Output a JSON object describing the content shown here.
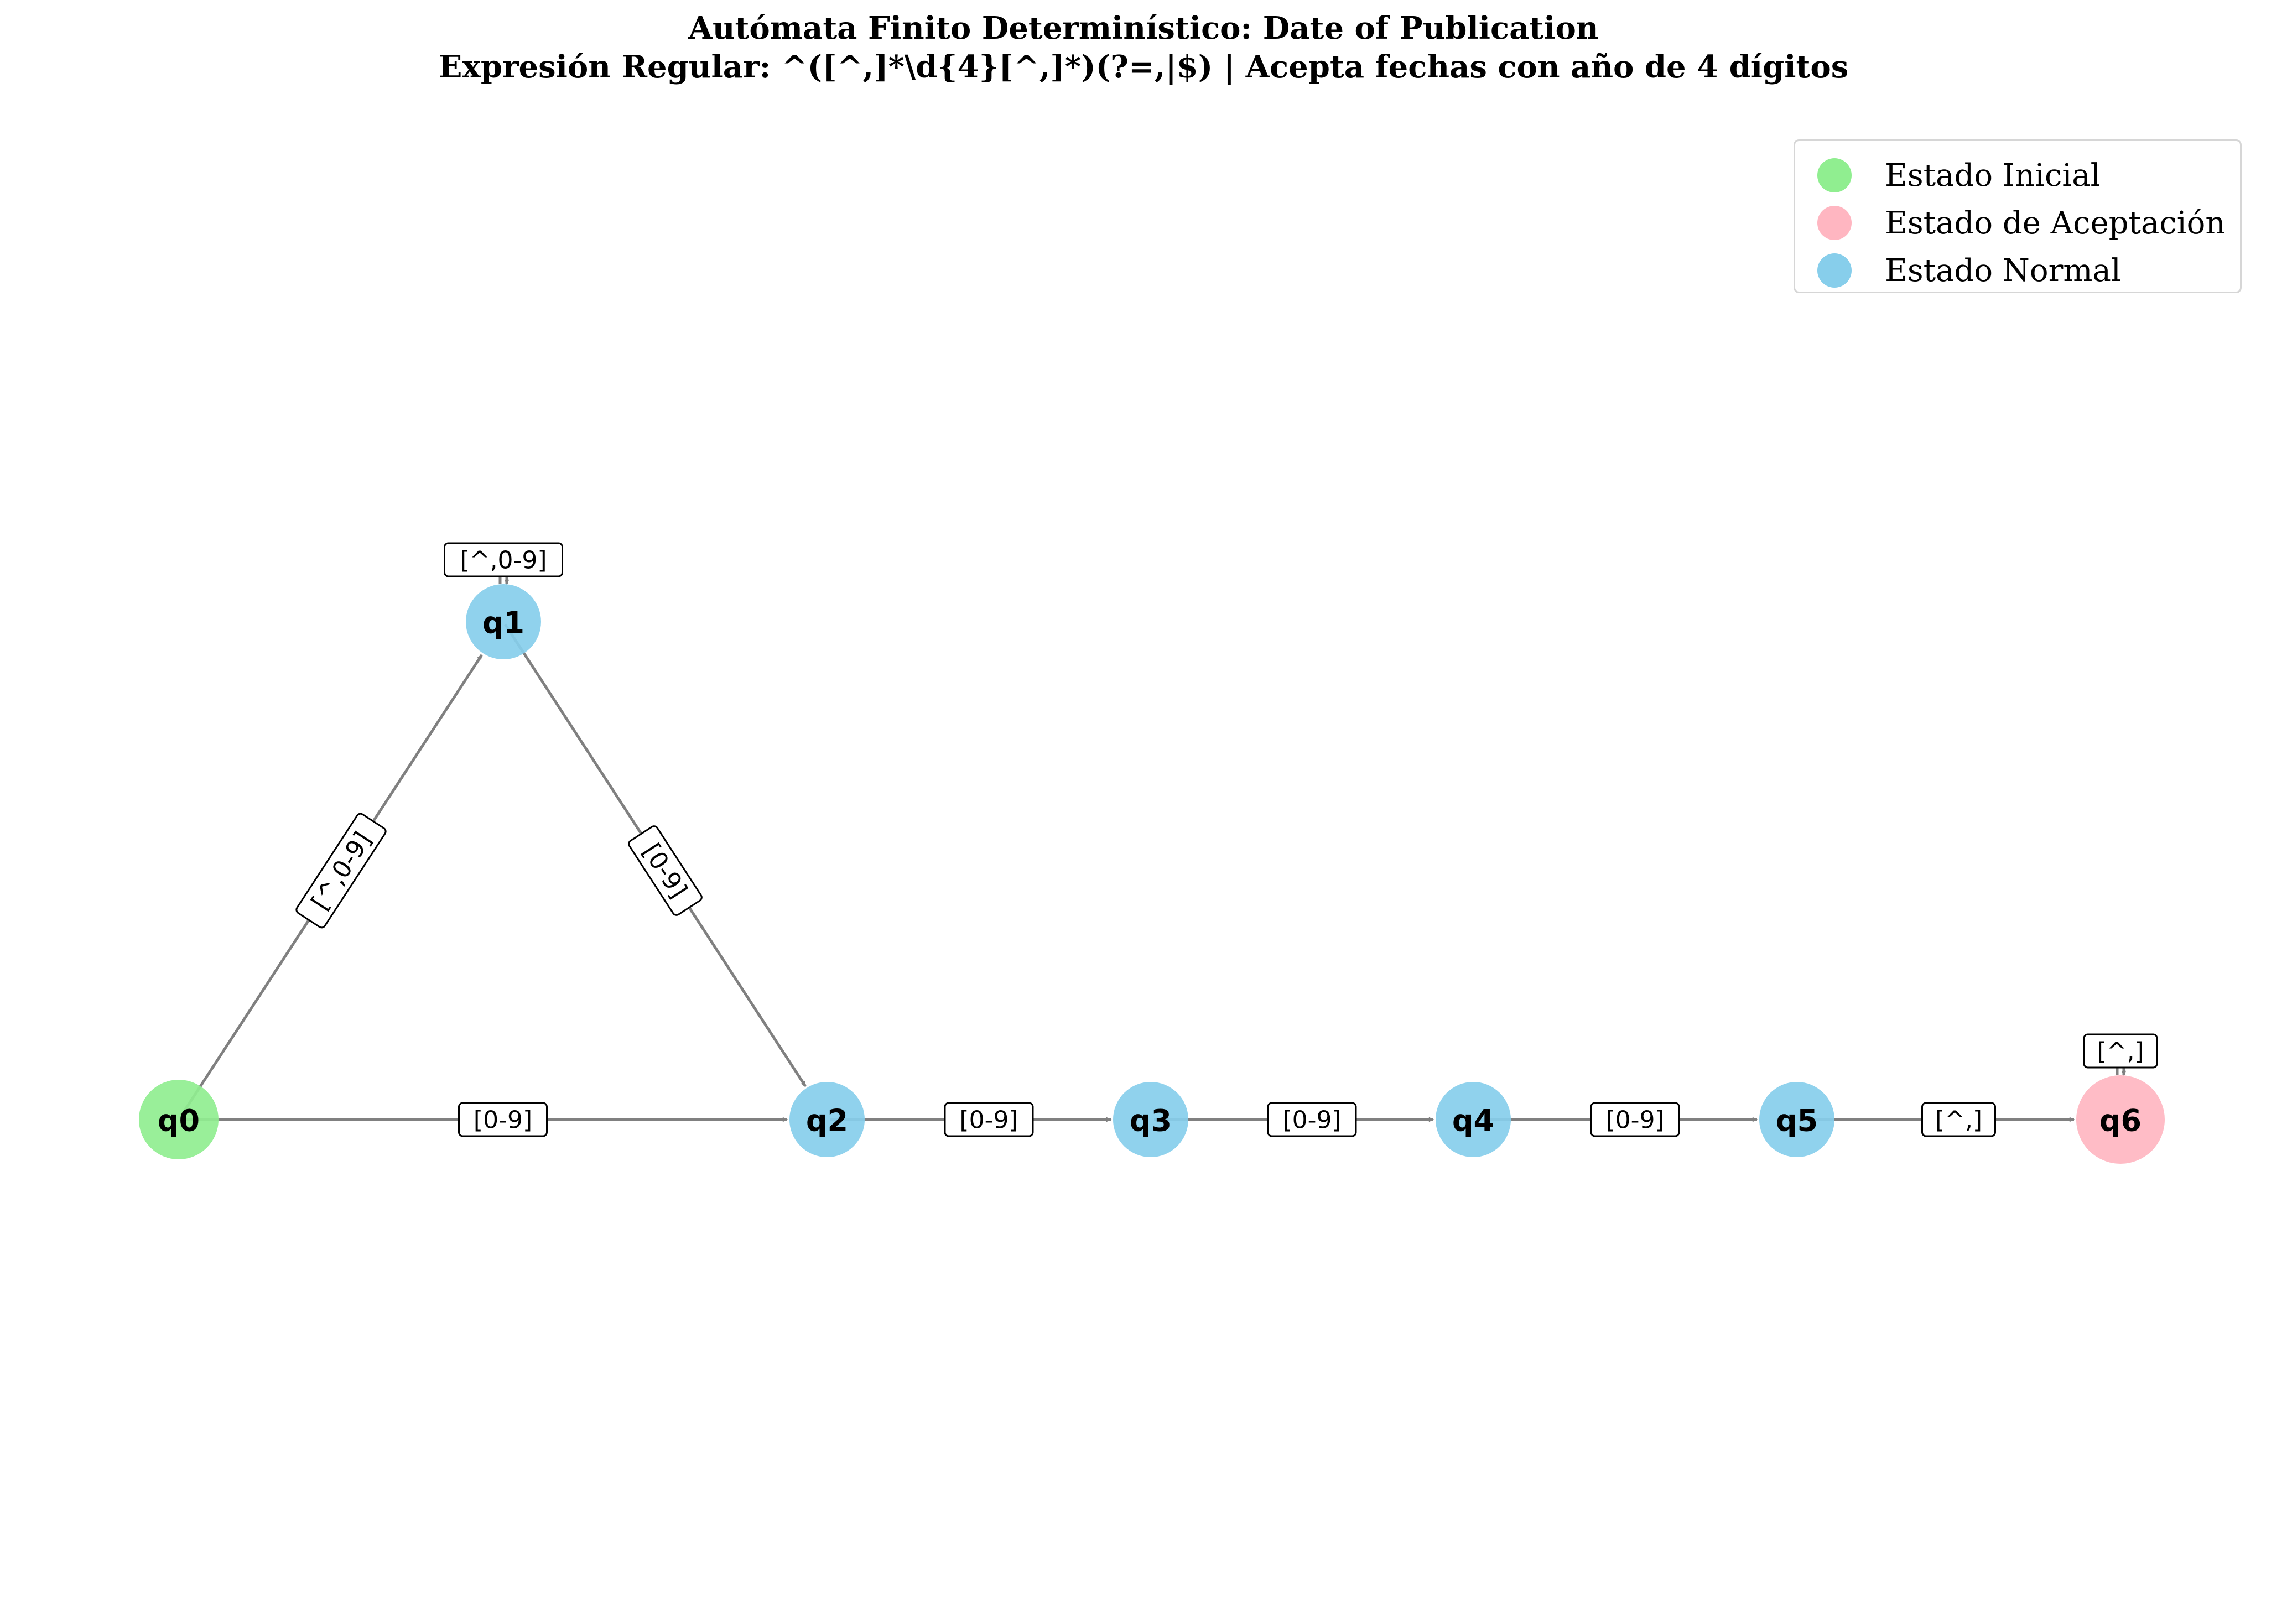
{
  "title": {
    "line1": "Autómata Finito Determinístico: Date of Publication",
    "line2": "Expresión Regular: ^([^,]*\\d{4}[^,]*)(?=,|$) | Acepta fechas con año de 4 dígitos"
  },
  "colors": {
    "initial": "#90ee90",
    "accept": "#ffb6c1",
    "normal": "#87ceeb",
    "edge": "#808080"
  },
  "legend": [
    {
      "label": "Estado Inicial",
      "type": "initial"
    },
    {
      "label": "Estado de Aceptación",
      "type": "accept"
    },
    {
      "label": "Estado Normal",
      "type": "normal"
    }
  ],
  "states": [
    {
      "id": "q0",
      "label": "q0",
      "type": "initial"
    },
    {
      "id": "q1",
      "label": "q1",
      "type": "normal"
    },
    {
      "id": "q2",
      "label": "q2",
      "type": "normal"
    },
    {
      "id": "q3",
      "label": "q3",
      "type": "normal"
    },
    {
      "id": "q4",
      "label": "q4",
      "type": "normal"
    },
    {
      "id": "q5",
      "label": "q5",
      "type": "normal"
    },
    {
      "id": "q6",
      "label": "q6",
      "type": "accept"
    }
  ],
  "transitions": [
    {
      "from": "q0",
      "to": "q1",
      "label": "[^,0-9]"
    },
    {
      "from": "q0",
      "to": "q2",
      "label": "[0-9]"
    },
    {
      "from": "q1",
      "to": "q1",
      "label": "[^,0-9]"
    },
    {
      "from": "q1",
      "to": "q2",
      "label": "[0-9]"
    },
    {
      "from": "q2",
      "to": "q3",
      "label": "[0-9]"
    },
    {
      "from": "q3",
      "to": "q4",
      "label": "[0-9]"
    },
    {
      "from": "q4",
      "to": "q5",
      "label": "[0-9]"
    },
    {
      "from": "q5",
      "to": "q6",
      "label": "[^,]"
    },
    {
      "from": "q6",
      "to": "q6",
      "label": "[^,]"
    }
  ]
}
